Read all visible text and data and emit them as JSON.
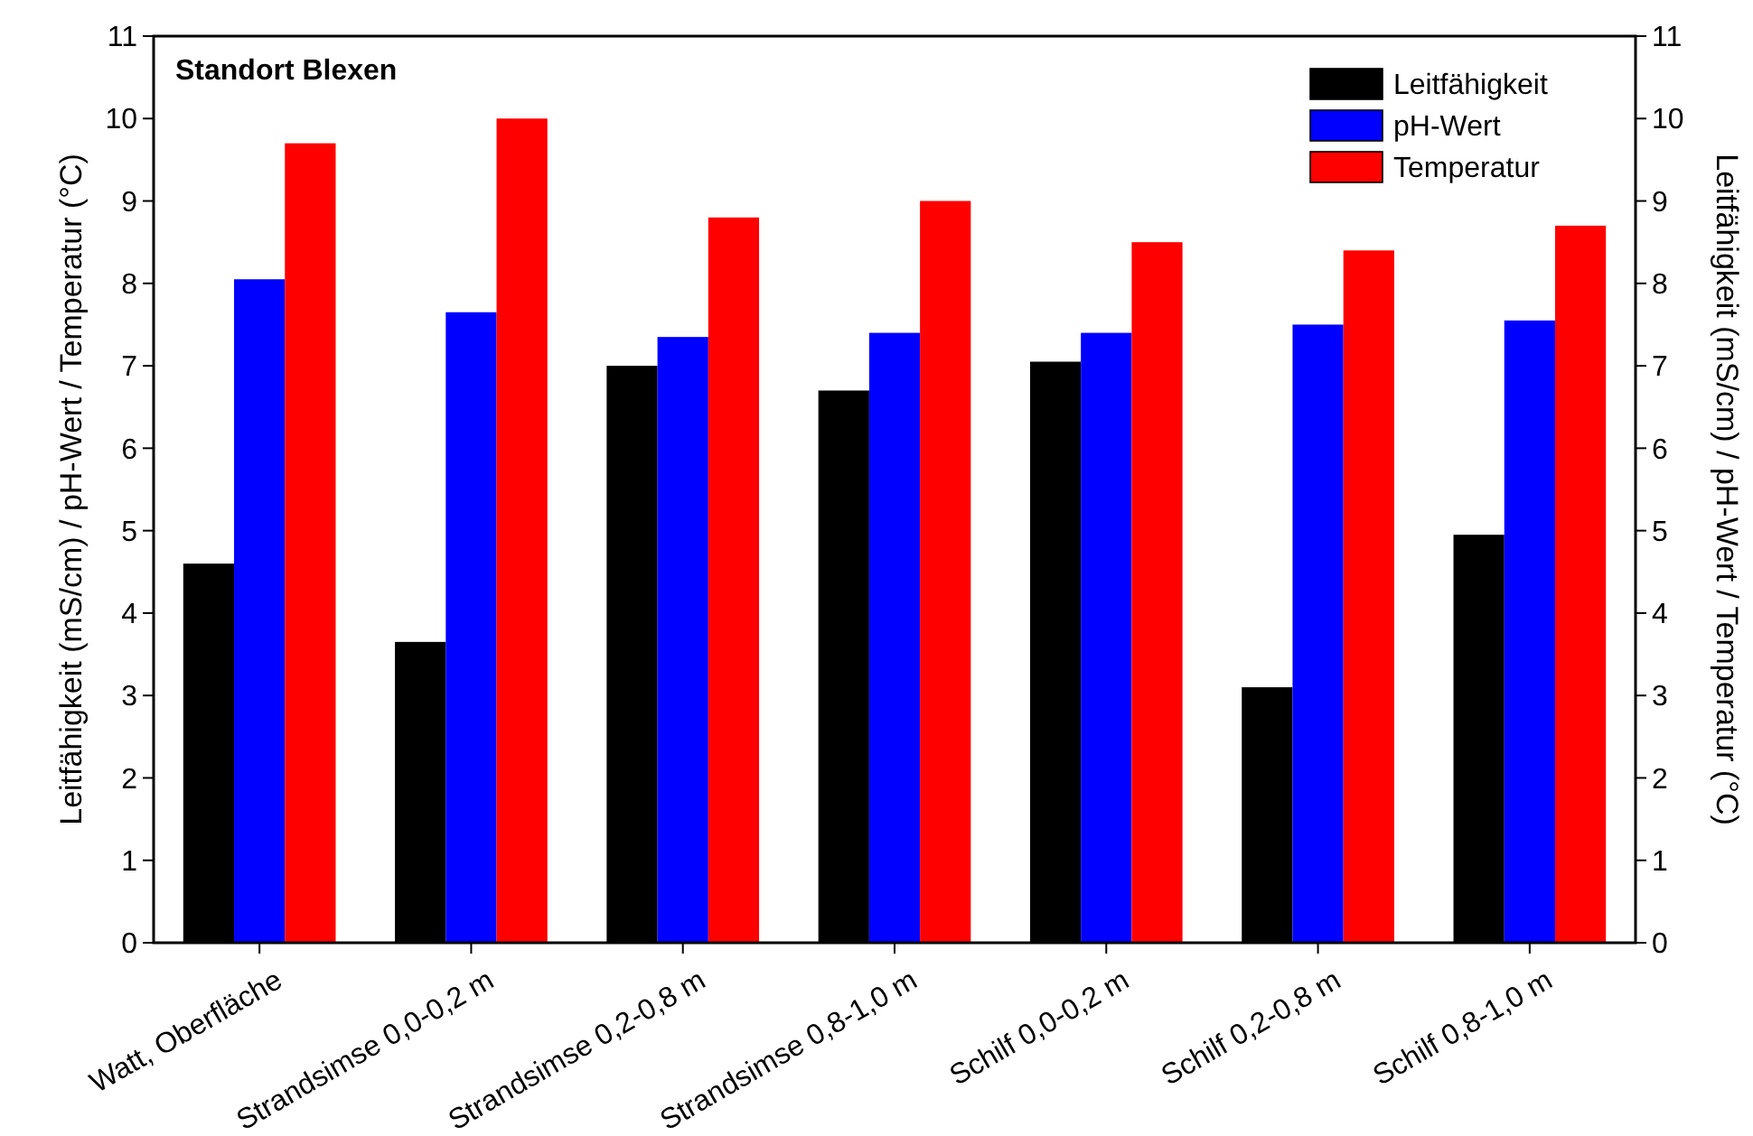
{
  "chart_data": {
    "type": "bar",
    "title": "Standort Blexen",
    "ylabel": "Leitfähigkeit (mS/cm) / pH-Wert / Temperatur (°C)",
    "y2label": "Leitfähigkeit (mS/cm) / pH-Wert / Temperatur (°C)",
    "categories": [
      "Watt, Oberfläche",
      "Strandsimse 0,0-0,2 m",
      "Strandsimse 0,2-0,8 m",
      "Strandsimse 0,8-1,0 m",
      "Schilf 0,0-0,2 m",
      "Schilf 0,2-0,8 m",
      "Schilf 0,8-1,0 m"
    ],
    "series": [
      {
        "name": "Leitfähigkeit",
        "color": "#000000",
        "values": [
          4.6,
          3.65,
          7.0,
          6.7,
          7.05,
          3.1,
          4.95
        ]
      },
      {
        "name": "pH-Wert",
        "color": "#0000ff",
        "values": [
          8.05,
          7.65,
          7.35,
          7.4,
          7.4,
          7.5,
          7.55
        ]
      },
      {
        "name": "Temperatur",
        "color": "#ff0000",
        "values": [
          9.7,
          10.0,
          8.8,
          9.0,
          8.5,
          8.4,
          8.7
        ]
      }
    ],
    "ylim": [
      0,
      11
    ],
    "yticks": [
      0,
      1,
      2,
      3,
      4,
      5,
      6,
      7,
      8,
      9,
      10,
      11
    ],
    "y2lim": [
      0,
      11
    ],
    "y2ticks": [
      0,
      1,
      2,
      3,
      4,
      5,
      6,
      7,
      8,
      9,
      10,
      11
    ],
    "legend": "top right",
    "grid": false
  }
}
